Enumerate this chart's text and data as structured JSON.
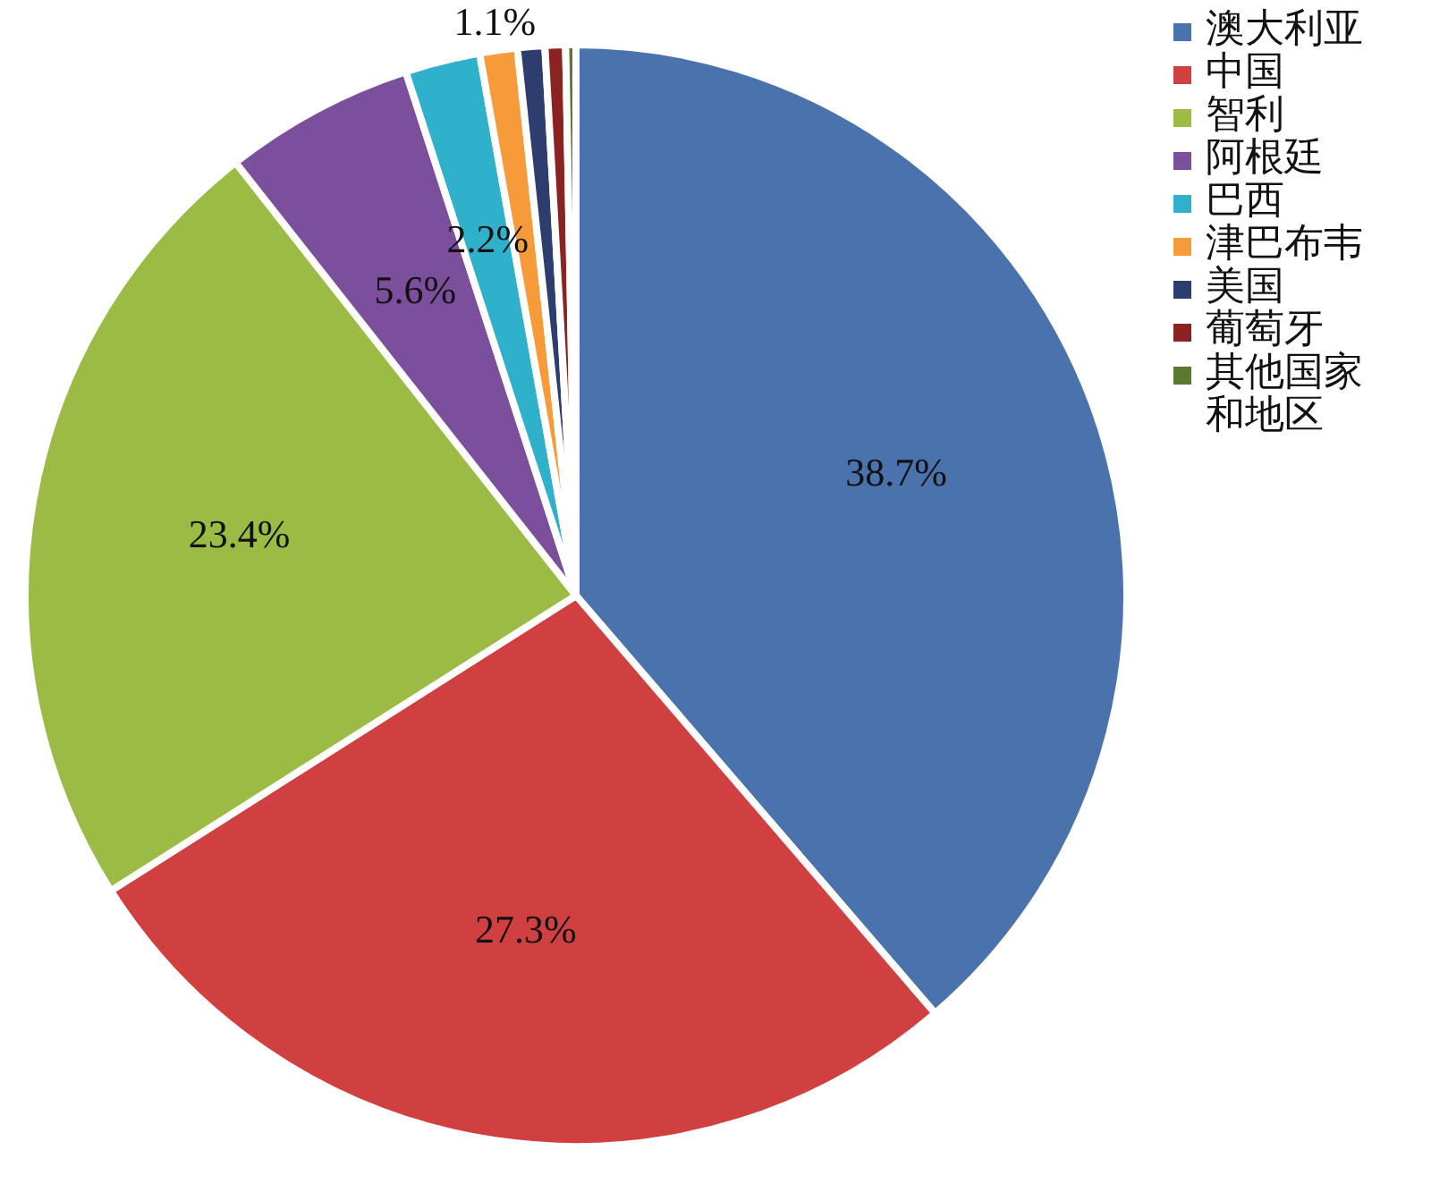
{
  "chart_data": {
    "type": "pie",
    "categories": [
      "澳大利亚",
      "中国",
      "智利",
      "阿根廷",
      "巴西",
      "津巴布韦",
      "美国",
      "葡萄牙",
      "其他国家和地区"
    ],
    "values": [
      38.7,
      27.3,
      23.4,
      5.6,
      2.2,
      1.1,
      0.8,
      0.6,
      0.3
    ],
    "colors": [
      "#4a72ac",
      "#d04040",
      "#9bbb45",
      "#7c4f9c",
      "#2fb1cc",
      "#f79a3a",
      "#2c3d6e",
      "#8b2323",
      "#5b7a2f"
    ],
    "value_labels": [
      "38.7%",
      "27.3%",
      "23.4%",
      "5.6%",
      "2.2%",
      "1.1%",
      null,
      null,
      null
    ],
    "legend": "right"
  }
}
